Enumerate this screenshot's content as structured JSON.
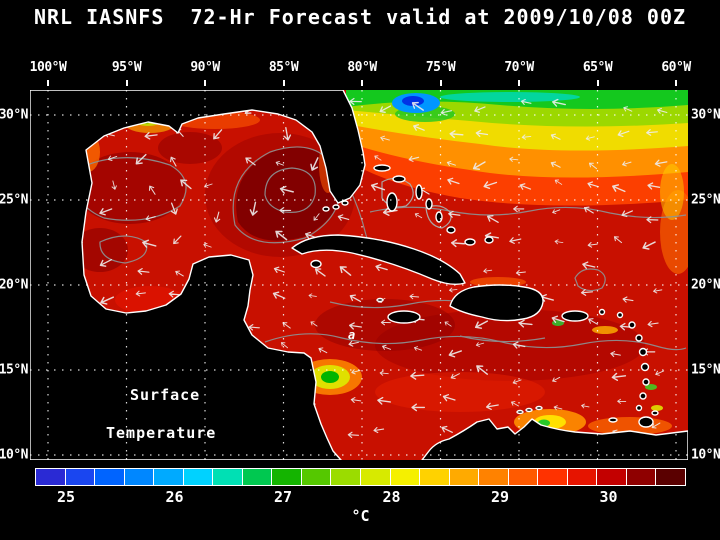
{
  "title": "NRL IASNFS  72-Hr Forecast valid at 2009/10/08 00Z",
  "axes": {
    "lon_labels": [
      "100°W",
      "95°W",
      "90°W",
      "85°W",
      "80°W",
      "75°W",
      "70°W",
      "65°W",
      "60°W"
    ],
    "lat_labels_left": [
      "30°N",
      "25°N",
      "20°N",
      "15°N",
      "10°N"
    ],
    "lat_labels_right": [
      "30°N",
      "25°N",
      "20°N",
      "15°N",
      "10°N"
    ]
  },
  "map_overlay": {
    "label_line1": "Surface",
    "label_line2": "Temperature",
    "small_marker": "a"
  },
  "colorbar": {
    "tick_labels": [
      "25",
      "26",
      "27",
      "28",
      "29",
      "30"
    ],
    "unit_label": "°C",
    "segment_colors": [
      "#2a2ad4",
      "#1a46f0",
      "#0064ff",
      "#0087ff",
      "#00aaff",
      "#00d2ff",
      "#00e0b4",
      "#00c850",
      "#14b400",
      "#55c800",
      "#9bdc00",
      "#d7ea00",
      "#f5f000",
      "#ffd200",
      "#ffaa00",
      "#ff8200",
      "#ff5a00",
      "#ff3200",
      "#e61400",
      "#c30000",
      "#8f0000",
      "#5a0000"
    ]
  },
  "palette": {
    "background": "#000000",
    "text": "#ffffff",
    "ocean_base": "#c81000",
    "grid": "#ffffff",
    "contour": "#8c9496",
    "coastline": "#ffffff",
    "land": "#000000",
    "arrow": "#eeeeee"
  }
}
